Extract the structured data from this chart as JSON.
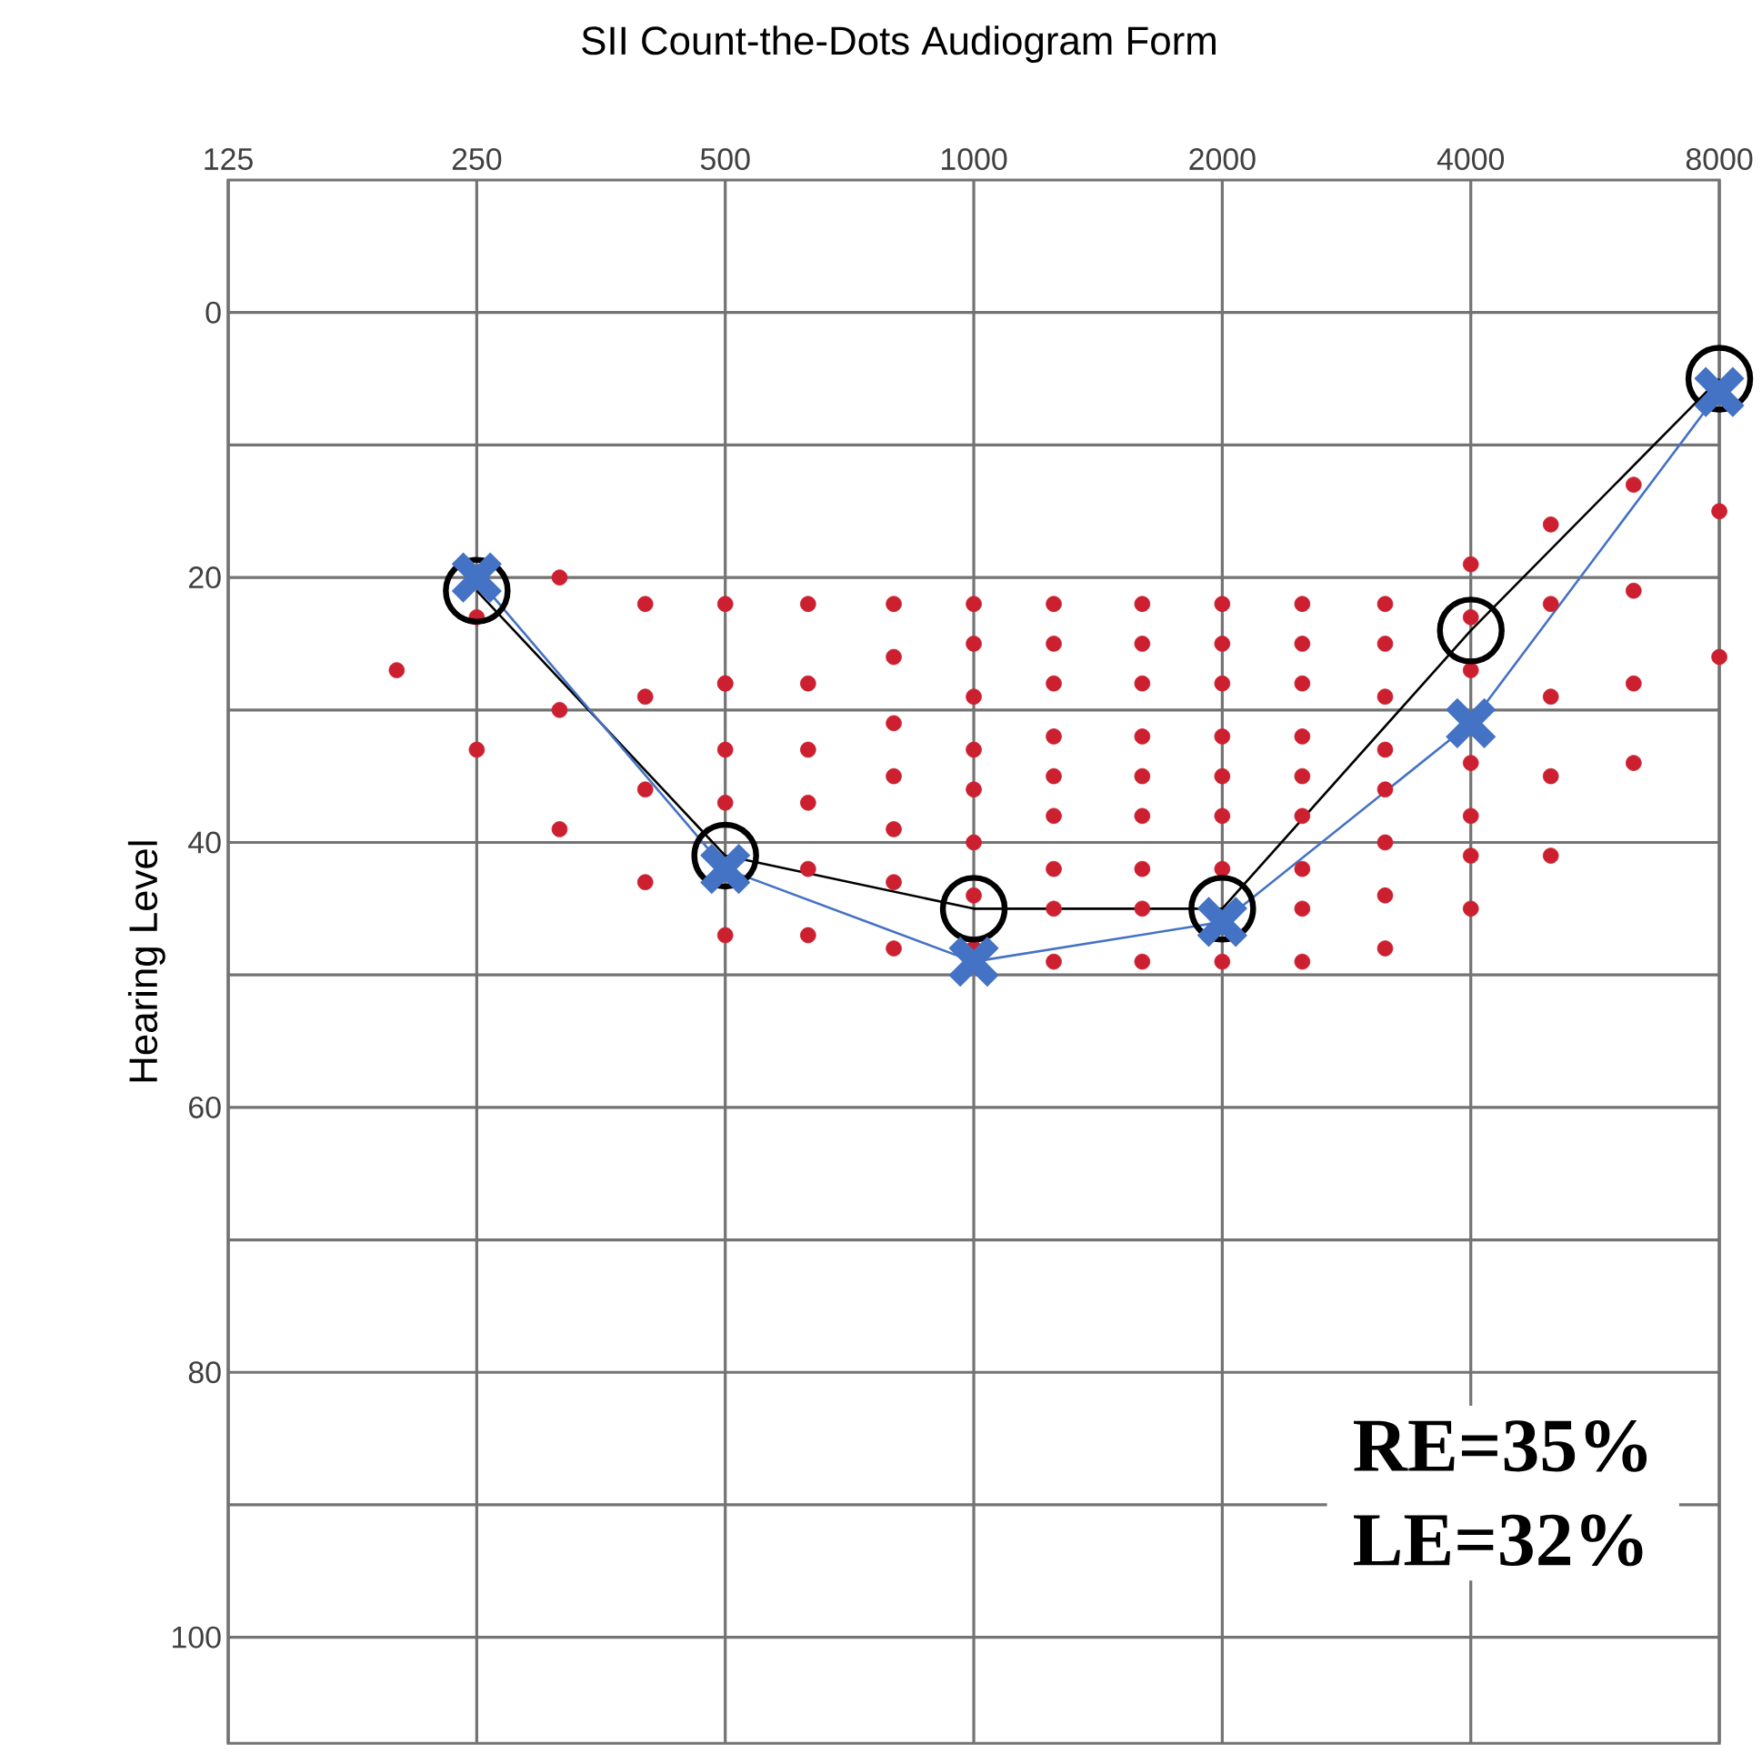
{
  "chart_data": {
    "type": "line",
    "title": "SII Count-the-Dots Audiogram Form",
    "ylabel": "Hearing Level",
    "log": "x",
    "grid": true,
    "xlim": [
      125,
      8000
    ],
    "xticks": [
      125,
      250,
      500,
      1000,
      2000,
      4000,
      8000
    ],
    "ylim": [
      108,
      -10
    ],
    "yticks": [
      0,
      {
        "value": 10,
        "label": null
      },
      20,
      {
        "value": 30,
        "label": null
      },
      40,
      {
        "value": 50,
        "label": null
      },
      60,
      {
        "value": 70,
        "label": null
      },
      80,
      {
        "value": 90,
        "label": null
      },
      100
    ],
    "x": [
      250,
      500,
      1000,
      2000,
      4000,
      8000
    ],
    "series": [
      {
        "type": "scatter",
        "color": "#cc1f2f",
        "marker": "circle",
        "x": [
          200,
          250,
          250,
          315,
          315,
          315,
          400,
          400,
          400,
          400,
          500,
          500,
          500,
          500,
          500,
          500,
          630,
          630,
          630,
          630,
          630,
          630,
          800,
          800,
          800,
          800,
          800,
          800,
          800,
          1000,
          1000,
          1000,
          1000,
          1000,
          1000,
          1000,
          1000,
          1250,
          1250,
          1250,
          1250,
          1250,
          1250,
          1250,
          1250,
          1250,
          1600,
          1600,
          1600,
          1600,
          1600,
          1600,
          1600,
          1600,
          1600,
          2000,
          2000,
          2000,
          2000,
          2000,
          2000,
          2000,
          2000,
          2500,
          2500,
          2500,
          2500,
          2500,
          2500,
          2500,
          2500,
          2500,
          3150,
          3150,
          3150,
          3150,
          3150,
          3150,
          3150,
          3150,
          4000,
          4000,
          4000,
          4000,
          4000,
          4000,
          4000,
          5000,
          5000,
          5000,
          5000,
          5000,
          6300,
          6300,
          6300,
          6300,
          8000,
          8000
        ],
        "values": [
          27,
          23,
          33,
          20,
          30,
          39,
          22,
          29,
          36,
          43,
          22,
          28,
          33,
          37,
          47,
          28,
          22,
          28,
          33,
          37,
          42,
          47,
          22,
          26,
          31,
          35,
          39,
          43,
          48,
          22,
          25,
          29,
          33,
          36,
          40,
          44,
          48,
          22,
          25,
          28,
          32,
          35,
          38,
          42,
          45,
          49,
          22,
          25,
          28,
          32,
          35,
          38,
          42,
          45,
          49,
          22,
          25,
          28,
          32,
          35,
          38,
          42,
          49,
          22,
          25,
          28,
          32,
          35,
          38,
          42,
          45,
          49,
          22,
          25,
          29,
          33,
          36,
          40,
          44,
          48,
          19,
          23,
          27,
          34,
          38,
          41,
          45,
          16,
          22,
          29,
          35,
          41,
          13,
          21,
          28,
          34,
          15,
          26
        ]
      },
      {
        "color": "#000000",
        "marker": "circle",
        "values": [
          21,
          41,
          45,
          45,
          24,
          5
        ]
      },
      {
        "color": "#4472c4",
        "marker": "cross",
        "values": [
          20,
          42,
          49,
          46,
          31,
          6
        ]
      }
    ],
    "annotations": [
      "RE=35%",
      "LE=32%"
    ]
  }
}
